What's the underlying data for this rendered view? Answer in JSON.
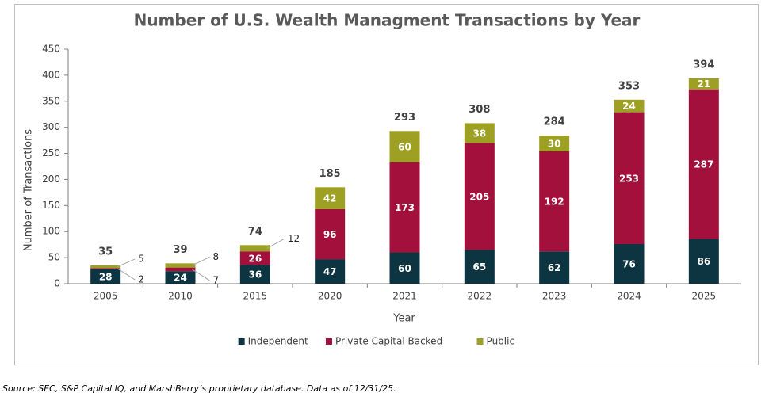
{
  "chart_data": {
    "type": "bar",
    "stacked": true,
    "title": "Number of U.S. Wealth Managment Transactions by Year",
    "x_label": "Year",
    "y_label": "Number of Transactions",
    "categories": [
      "2005",
      "2010",
      "2015",
      "2020",
      "2021",
      "2022",
      "2023",
      "2024",
      "2025"
    ],
    "series": [
      {
        "name": "Independent",
        "color": "#0d3441",
        "values": [
          28,
          24,
          36,
          47,
          60,
          65,
          62,
          76,
          86
        ]
      },
      {
        "name": "Private Capital Backed",
        "color": "#a3103b",
        "values": [
          2,
          7,
          26,
          96,
          173,
          205,
          192,
          253,
          287
        ]
      },
      {
        "name": "Public",
        "color": "#9ea024",
        "values": [
          5,
          8,
          12,
          42,
          60,
          38,
          30,
          24,
          21
        ]
      }
    ],
    "totals": [
      35,
      39,
      74,
      185,
      293,
      308,
      284,
      353,
      394
    ],
    "ylim": [
      0,
      450
    ],
    "yticks": [
      0,
      50,
      100,
      150,
      200,
      250,
      300,
      350,
      400,
      450
    ],
    "grid": false,
    "legend": "bottom"
  },
  "source": "Source: SEC, S&P Capital IQ, and MarshBerry’s proprietary database. Data as of 12/31/25."
}
